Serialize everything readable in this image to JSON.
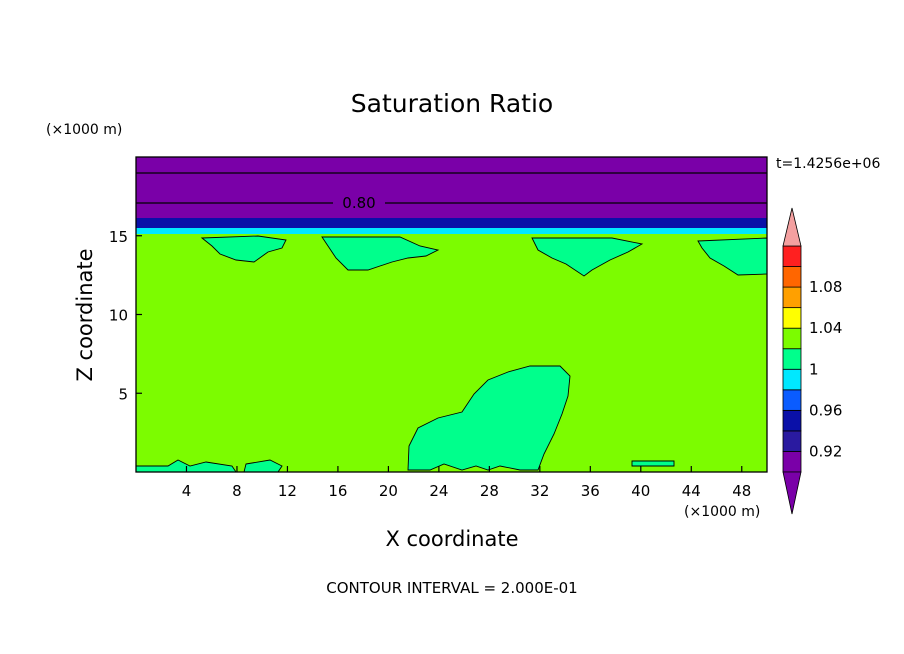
{
  "chart_data": {
    "type": "contour",
    "title": "Saturation Ratio",
    "xlabel": "X coordinate",
    "ylabel": "Z coordinate",
    "x_unit": "(×1000 m)",
    "y_unit": "(×1000 m)",
    "xlim": [
      0,
      50
    ],
    "ylim": [
      0,
      20
    ],
    "x_ticks": [
      4,
      8,
      12,
      16,
      20,
      24,
      28,
      32,
      36,
      40,
      44,
      48
    ],
    "y_ticks": [
      5,
      10,
      15
    ],
    "time_label": "t=1.4256e+06",
    "footer": "CONTOUR INTERVAL = 2.000E-01",
    "contour_line_labels": [
      {
        "text": "0.80",
        "x": 17.8,
        "z": 17.0
      }
    ],
    "horizontal_contours_z": [
      18.8,
      17.0
    ],
    "colorbar": {
      "tick_labels": [
        "0.92",
        "0.96",
        "1",
        "1.04",
        "1.08"
      ],
      "tick_values": [
        0.92,
        0.96,
        1.0,
        1.04,
        1.08
      ],
      "levels": [
        {
          "value": 0.9,
          "color": "#7a00a8"
        },
        {
          "value": 0.92,
          "color": "#2a1aa0"
        },
        {
          "value": 0.94,
          "color": "#0a10a8"
        },
        {
          "value": 0.96,
          "color": "#0a5cff"
        },
        {
          "value": 0.98,
          "color": "#00e8ff"
        },
        {
          "value": 1.0,
          "color": "#00ff8c"
        },
        {
          "value": 1.02,
          "color": "#7cfc00"
        },
        {
          "value": 1.04,
          "color": "#ffff00"
        },
        {
          "value": 1.06,
          "color": "#ffa000"
        },
        {
          "value": 1.08,
          "color": "#ff6600"
        },
        {
          "value": 1.1,
          "color": "#ff2020"
        }
      ],
      "under_color": "#7a00a8",
      "over_color": "#f4a0a0"
    },
    "fields": [
      {
        "name": "background",
        "color": "#7cfc00"
      },
      {
        "name": "upper-layer",
        "color": "#7a00a8",
        "z_from": 15.9,
        "z_to": 20
      },
      {
        "name": "blue-band",
        "color": "#0a10a8",
        "z_from": 15.4,
        "z_to": 15.9
      },
      {
        "name": "cyan-band",
        "color": "#00e8ff",
        "z_from": 15.0,
        "z_to": 15.4
      },
      {
        "name": "cloud-patch",
        "color": "#00ff8c"
      }
    ]
  }
}
